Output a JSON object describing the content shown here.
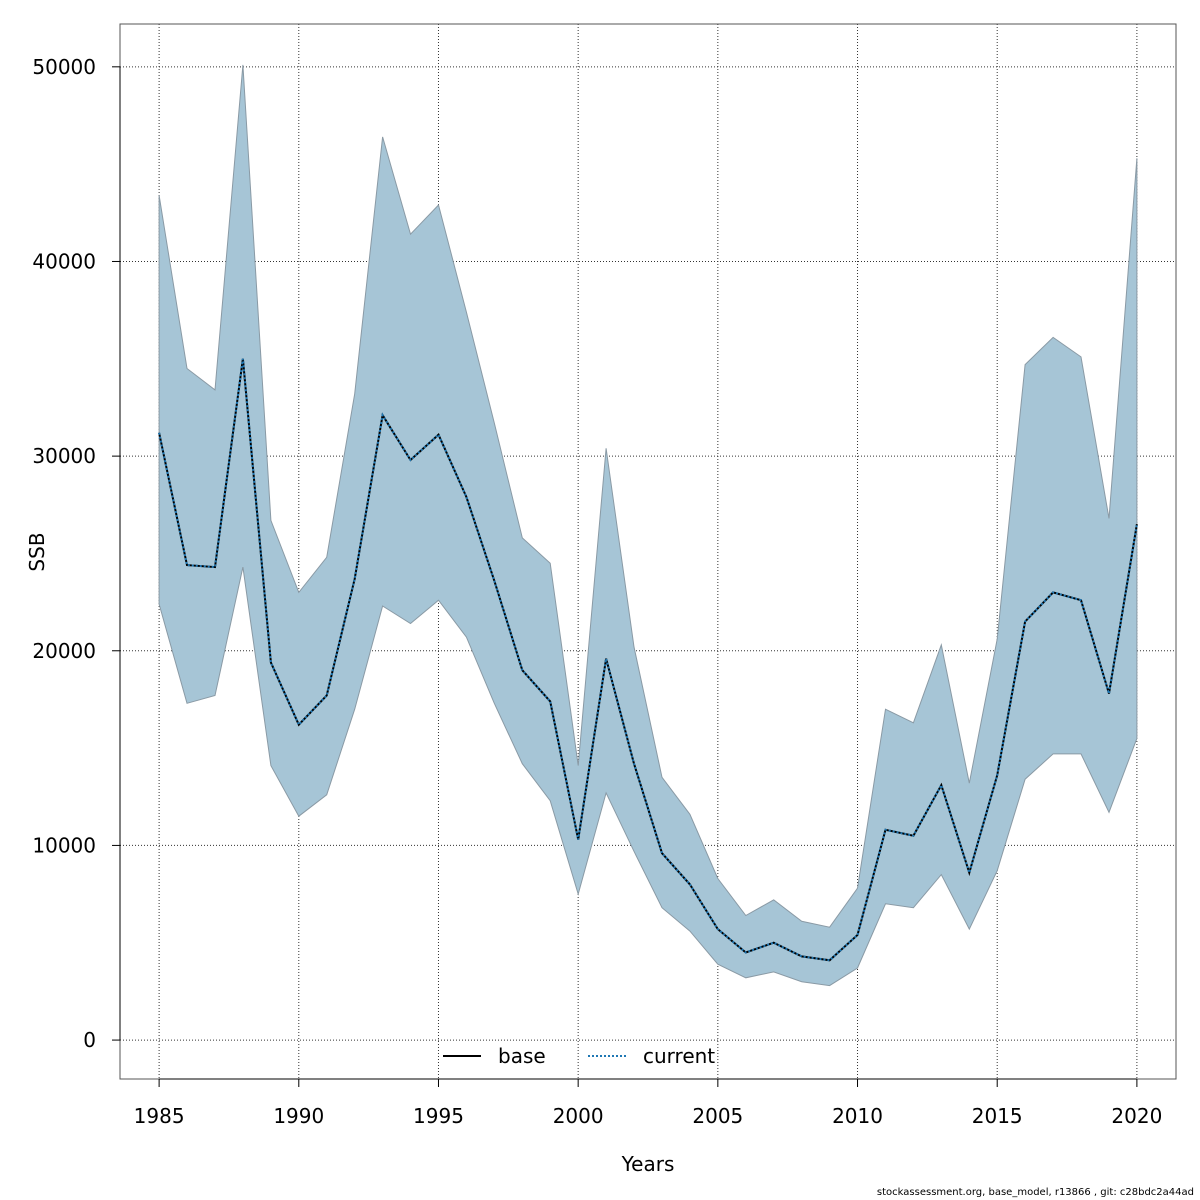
{
  "chart_data": {
    "type": "line",
    "xlabel": "Years",
    "ylabel": "SSB",
    "xlim": [
      1983.6,
      2021.4
    ],
    "ylim": [
      -2000,
      52200
    ],
    "x_ticks": [
      1985,
      1990,
      1995,
      2000,
      2005,
      2010,
      2015,
      2020
    ],
    "y_ticks": [
      0,
      10000,
      20000,
      30000,
      40000,
      50000
    ],
    "grid": true,
    "legend_position": "bottom-center",
    "x": [
      1985,
      1986,
      1987,
      1988,
      1989,
      1990,
      1991,
      1992,
      1993,
      1994,
      1995,
      1996,
      1997,
      1998,
      1999,
      2000,
      2001,
      2002,
      2003,
      2004,
      2005,
      2006,
      2007,
      2008,
      2009,
      2010,
      2011,
      2012,
      2013,
      2014,
      2015,
      2016,
      2017,
      2018,
      2019,
      2020
    ],
    "series": [
      {
        "name": "base",
        "line_style": "solid",
        "color": "#000000",
        "values": [
          31200,
          24400,
          24300,
          35000,
          19400,
          16200,
          17700,
          23700,
          32100,
          29800,
          31100,
          27900,
          23600,
          19000,
          17400,
          10300,
          19600,
          14200,
          9600,
          8000,
          5700,
          4500,
          5000,
          4300,
          4100,
          5400,
          10800,
          10500,
          13100,
          8600,
          13600,
          21500,
          23000,
          22600,
          17800,
          26500
        ]
      },
      {
        "name": "current",
        "line_style": "dotted",
        "color": "#1f78b4",
        "values": [
          31200,
          24400,
          24300,
          35000,
          19400,
          16200,
          17700,
          23700,
          32100,
          29800,
          31100,
          27900,
          23600,
          19000,
          17400,
          10300,
          19600,
          14200,
          9600,
          8000,
          5700,
          4500,
          5000,
          4300,
          4100,
          5400,
          10800,
          10500,
          13100,
          8600,
          13600,
          21500,
          23000,
          22600,
          17800,
          26500
        ]
      }
    ],
    "confidence_band": {
      "color": "#a6c5d6",
      "edge_color": "#8a9aa5",
      "upper": [
        43400,
        34500,
        33400,
        50100,
        26700,
        23000,
        24800,
        33200,
        46400,
        41400,
        42900,
        37400,
        31700,
        25800,
        24500,
        14100,
        30400,
        20200,
        13500,
        11600,
        8300,
        6400,
        7200,
        6100,
        5800,
        7800,
        17000,
        16300,
        20300,
        13200,
        20600,
        34700,
        36100,
        35100,
        26800,
        45300
      ],
      "lower": [
        22400,
        17300,
        17700,
        24300,
        14100,
        11500,
        12600,
        17000,
        22300,
        21400,
        22600,
        20700,
        17300,
        14200,
        12300,
        7500,
        12700,
        9700,
        6800,
        5600,
        3900,
        3200,
        3500,
        3000,
        2800,
        3700,
        7000,
        6800,
        8500,
        5700,
        8700,
        13400,
        14700,
        14700,
        11700,
        15500
      ]
    }
  },
  "footer": "stockassessment.org, base_model, r13866 , git: c28bdc2a44ad"
}
